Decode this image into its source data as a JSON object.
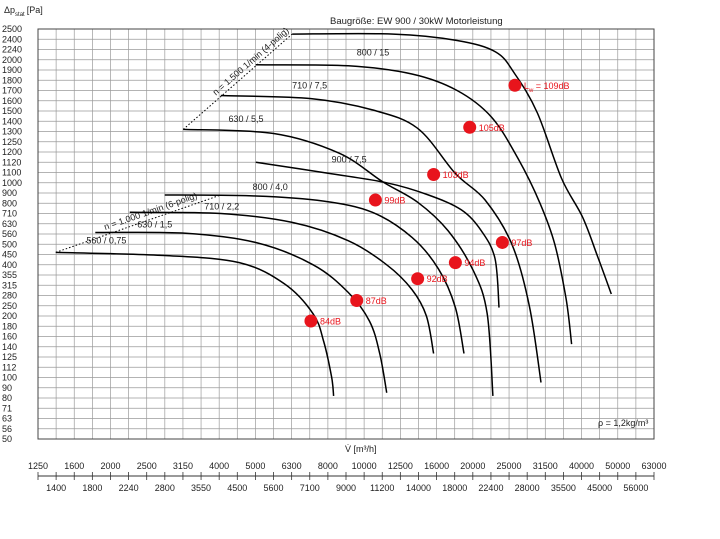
{
  "chart_data": {
    "type": "line",
    "title": "Baugröße: EW 900 / 30kW Motorleistung",
    "ylabel_main": "Δp",
    "ylabel_sub": "stat",
    "ylabel_unit": "[Pa]",
    "xlabel": "V̇ [m³/h]",
    "density_note": "ρ = 1,2kg/m³",
    "y_scale": "log",
    "x_scale": "log",
    "ylim": [
      50,
      2500
    ],
    "xlim": [
      1250,
      63000
    ],
    "grid": true,
    "y_ticks": [
      "2500",
      "2400",
      "2240",
      "2000",
      "1900",
      "1800",
      "1700",
      "1600",
      "1500",
      "1400",
      "1300",
      "1250",
      "1200",
      "1120",
      "1100",
      "1000",
      "900",
      "800",
      "710",
      "630",
      "560",
      "500",
      "450",
      "400",
      "355",
      "315",
      "280",
      "250",
      "200",
      "180",
      "160",
      "140",
      "125",
      "112",
      "100",
      "90",
      "80",
      "71",
      "63",
      "56",
      "50"
    ],
    "x_ticks_row1": [
      "1250",
      "1600",
      "2000",
      "2500",
      "3150",
      "4000",
      "5000",
      "6300",
      "8000",
      "10000",
      "12500",
      "16000",
      "20000",
      "25000",
      "31500",
      "40000",
      "50000",
      "63000"
    ],
    "x_ticks_row2": [
      "1400",
      "1800",
      "2240",
      "2800",
      "3550",
      "4500",
      "5600",
      "7100",
      "9000",
      "11200",
      "14000",
      "18000",
      "22400",
      "28000",
      "35500",
      "45000",
      "56000"
    ],
    "speed_lines": [
      {
        "label": "n = 1.000 1/min (6-polig)",
        "points": [
          [
            1400,
            460
          ],
          [
            4000,
            880
          ]
        ]
      },
      {
        "label": "n = 1.500 1/min (4-polig)",
        "points": [
          [
            3150,
            1320
          ],
          [
            6300,
            2450
          ]
        ]
      }
    ],
    "series": [
      {
        "name": "560 / 0,75",
        "points": [
          [
            1400,
            460
          ],
          [
            2800,
            445
          ],
          [
            4500,
            410
          ],
          [
            6000,
            320
          ],
          [
            7200,
            210
          ],
          [
            7700,
            150
          ],
          [
            8100,
            100
          ],
          [
            8200,
            82
          ]
        ]
      },
      {
        "name": "630 / 1,5",
        "points": [
          [
            1800,
            570
          ],
          [
            3200,
            565
          ],
          [
            5000,
            510
          ],
          [
            7200,
            400
          ],
          [
            9000,
            290
          ],
          [
            10300,
            190
          ],
          [
            11000,
            130
          ],
          [
            11500,
            85
          ]
        ]
      },
      {
        "name": "710 / 2,2",
        "points": [
          [
            2240,
            720
          ],
          [
            4000,
            710
          ],
          [
            6300,
            640
          ],
          [
            9000,
            520
          ],
          [
            11500,
            400
          ],
          [
            13500,
            300
          ],
          [
            14800,
            200
          ],
          [
            15500,
            130
          ]
        ]
      },
      {
        "name": "800 / 4,0",
        "points": [
          [
            2800,
            880
          ],
          [
            5000,
            870
          ],
          [
            7700,
            820
          ],
          [
            10500,
            720
          ],
          [
            13500,
            540
          ],
          [
            16000,
            380
          ],
          [
            17800,
            240
          ],
          [
            18800,
            130
          ]
        ]
      },
      {
        "name": "900 / 7,5",
        "points": [
          [
            5000,
            1120
          ],
          [
            8000,
            1090
          ],
          [
            11500,
            1000
          ],
          [
            15000,
            880
          ],
          [
            18500,
            740
          ],
          [
            21000,
            580
          ],
          [
            22900,
            430
          ],
          [
            23500,
            240
          ]
        ]
      },
      {
        "name": "630 / 5,5",
        "points": [
          [
            3150,
            1320
          ],
          [
            5600,
            1290
          ],
          [
            8500,
            1190
          ],
          [
            11200,
            1010
          ],
          [
            14000,
            810
          ],
          [
            17000,
            580
          ],
          [
            20000,
            370
          ],
          [
            21800,
            210
          ],
          [
            22600,
            82
          ]
        ]
      },
      {
        "name": "710 / 7,5",
        "points": [
          [
            4000,
            1650
          ],
          [
            7100,
            1620
          ],
          [
            10500,
            1510
          ],
          [
            14000,
            1330
          ],
          [
            17800,
            1090
          ],
          [
            21500,
            830
          ],
          [
            25500,
            500
          ],
          [
            28500,
            250
          ],
          [
            30700,
            95
          ]
        ]
      },
      {
        "name": "800 / 15",
        "points": [
          [
            5000,
            1950
          ],
          [
            9000,
            1940
          ],
          [
            13500,
            1860
          ],
          [
            18000,
            1700
          ],
          [
            22400,
            1440
          ],
          [
            26500,
            1150
          ],
          [
            30500,
            800
          ],
          [
            33500,
            500
          ],
          [
            36000,
            270
          ],
          [
            37300,
            145
          ]
        ]
      },
      {
        "name": "Lw",
        "points": [
          [
            6300,
            2450
          ],
          [
            12000,
            2450
          ],
          [
            18000,
            2380
          ],
          [
            23000,
            2180
          ],
          [
            26000,
            1860
          ],
          [
            30000,
            1480
          ],
          [
            35000,
            1040
          ],
          [
            40000,
            680
          ],
          [
            44000,
            440
          ],
          [
            48000,
            285
          ]
        ]
      }
    ],
    "curve_labels": [
      {
        "text": "560 / 0,75",
        "at": [
          1700,
          505
        ]
      },
      {
        "text": "630 / 1,5",
        "at": [
          2350,
          605
        ]
      },
      {
        "text": "710 / 2,2",
        "at": [
          3600,
          745
        ]
      },
      {
        "text": "800 / 4,0",
        "at": [
          4900,
          930
        ]
      },
      {
        "text": "900 / 7,5",
        "at": [
          8100,
          1120
        ]
      },
      {
        "text": "630 / 5,5",
        "at": [
          4200,
          1390
        ]
      },
      {
        "text": "710 / 7,5",
        "at": [
          6300,
          1720
        ]
      },
      {
        "text": "800 / 15",
        "at": [
          9500,
          2100
        ]
      }
    ],
    "noise_points": [
      {
        "label": "84dB",
        "x": 7100,
        "y": 190
      },
      {
        "label": "87dB",
        "x": 9500,
        "y": 265
      },
      {
        "label": "92dB",
        "x": 14000,
        "y": 340
      },
      {
        "label": "94dB",
        "x": 17800,
        "y": 410
      },
      {
        "label": "97dB",
        "x": 24000,
        "y": 510
      },
      {
        "label": "99dB",
        "x": 10700,
        "y": 830
      },
      {
        "label": "103dB",
        "x": 15500,
        "y": 1080
      },
      {
        "label": "105dB",
        "x": 19500,
        "y": 1340
      },
      {
        "label_prefix": "L",
        "label_sub": "w",
        "label": " = 109dB",
        "x": 26000,
        "y": 1750
      }
    ],
    "colors": {
      "curve": "#000000",
      "grid": "#9a9a9a",
      "noise": "#e8141c",
      "axis": "#444444"
    }
  }
}
